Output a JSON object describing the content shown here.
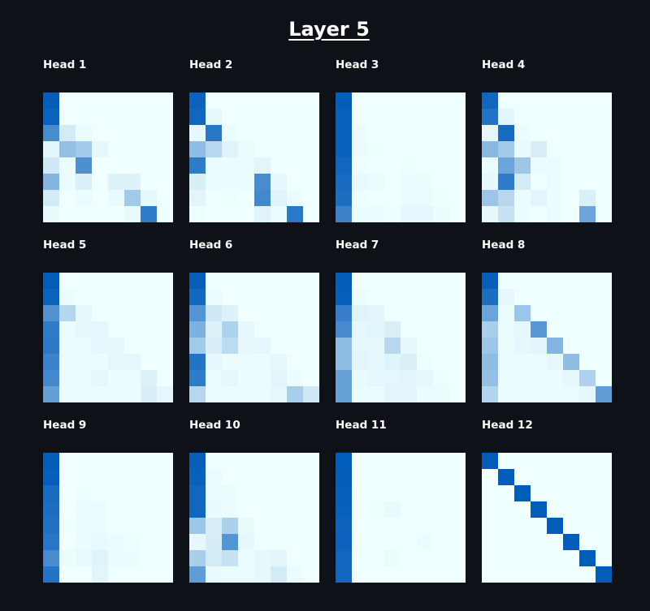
{
  "chart_data": {
    "type": "heatmap",
    "title": "Layer 5",
    "colorscale": [
      "#f0ffff",
      "#005ab9"
    ],
    "value_range": [
      0,
      1
    ],
    "heads": [
      {
        "title": "Head 1",
        "matrix": [
          [
            0.98,
            0,
            0,
            0,
            0,
            0,
            0,
            0
          ],
          [
            0.95,
            0,
            0,
            0,
            0,
            0,
            0,
            0
          ],
          [
            0.7,
            0.12,
            0.02,
            0,
            0,
            0,
            0,
            0
          ],
          [
            0.06,
            0.38,
            0.32,
            0.04,
            0,
            0,
            0,
            0
          ],
          [
            0.14,
            0.02,
            0.68,
            0,
            0,
            0,
            0,
            0
          ],
          [
            0.45,
            0.02,
            0.09,
            0,
            0.08,
            0.08,
            0,
            0
          ],
          [
            0.12,
            0,
            0.02,
            0,
            0.03,
            0.33,
            0.04,
            0
          ],
          [
            0.03,
            0,
            0,
            0,
            0,
            0.03,
            0.8,
            0
          ]
        ]
      },
      {
        "title": "Head 2",
        "matrix": [
          [
            0.95,
            0,
            0,
            0,
            0,
            0,
            0,
            0
          ],
          [
            0.93,
            0.04,
            0,
            0,
            0,
            0,
            0,
            0
          ],
          [
            0.04,
            0.83,
            0.02,
            0,
            0,
            0,
            0,
            0
          ],
          [
            0.4,
            0.24,
            0.07,
            0.02,
            0,
            0,
            0,
            0
          ],
          [
            0.8,
            0.02,
            0.02,
            0.02,
            0.06,
            0,
            0,
            0
          ],
          [
            0.1,
            0.02,
            0.02,
            0.02,
            0.7,
            0.04,
            0,
            0
          ],
          [
            0.06,
            0,
            0.01,
            0,
            0.72,
            0.07,
            0.02,
            0
          ],
          [
            0.01,
            0,
            0,
            0,
            0.07,
            0.02,
            0.82,
            0
          ]
        ]
      },
      {
        "title": "Head 3",
        "matrix": [
          [
            0.98,
            0,
            0,
            0,
            0,
            0,
            0,
            0
          ],
          [
            0.96,
            0,
            0,
            0,
            0,
            0,
            0,
            0
          ],
          [
            0.96,
            0.02,
            0,
            0,
            0,
            0,
            0,
            0
          ],
          [
            0.96,
            0.02,
            0.01,
            0,
            0,
            0,
            0,
            0
          ],
          [
            0.93,
            0.01,
            0,
            0,
            0.01,
            0,
            0,
            0
          ],
          [
            0.9,
            0.03,
            0.02,
            0,
            0.02,
            0.02,
            0,
            0
          ],
          [
            0.88,
            0.01,
            0,
            0,
            0.02,
            0.02,
            0.01,
            0
          ],
          [
            0.75,
            0.02,
            0.02,
            0.01,
            0.05,
            0.05,
            0.02,
            0
          ]
        ]
      },
      {
        "title": "Head 4",
        "matrix": [
          [
            0.93,
            0,
            0,
            0,
            0,
            0,
            0,
            0
          ],
          [
            0.85,
            0.06,
            0,
            0,
            0,
            0,
            0,
            0
          ],
          [
            0.05,
            0.9,
            0.02,
            0,
            0,
            0,
            0,
            0
          ],
          [
            0.43,
            0.32,
            0.03,
            0.1,
            0,
            0,
            0,
            0
          ],
          [
            0.02,
            0.55,
            0.34,
            0.02,
            0.02,
            0,
            0,
            0
          ],
          [
            0.04,
            0.8,
            0.12,
            0,
            0.02,
            0,
            0,
            0
          ],
          [
            0.35,
            0.24,
            0.02,
            0.06,
            0.02,
            0,
            0.09,
            0
          ],
          [
            0.04,
            0.17,
            0.02,
            0,
            0.02,
            0,
            0.55,
            0
          ]
        ]
      },
      {
        "title": "Head 5",
        "matrix": [
          [
            0.98,
            0,
            0,
            0,
            0,
            0,
            0,
            0
          ],
          [
            0.95,
            0.02,
            0,
            0,
            0,
            0,
            0,
            0
          ],
          [
            0.66,
            0.25,
            0.04,
            0,
            0,
            0,
            0,
            0
          ],
          [
            0.8,
            0.02,
            0.04,
            0.05,
            0,
            0,
            0,
            0
          ],
          [
            0.82,
            0.02,
            0.02,
            0.05,
            0.04,
            0,
            0,
            0
          ],
          [
            0.75,
            0.02,
            0.02,
            0.02,
            0.05,
            0.05,
            0,
            0
          ],
          [
            0.72,
            0.02,
            0.02,
            0.05,
            0.02,
            0.02,
            0.08,
            0
          ],
          [
            0.58,
            0.02,
            0.02,
            0.02,
            0.02,
            0.02,
            0.1,
            0.05
          ]
        ]
      },
      {
        "title": "Head 6",
        "matrix": [
          [
            0.97,
            0,
            0,
            0,
            0,
            0,
            0,
            0
          ],
          [
            0.92,
            0.02,
            0,
            0,
            0,
            0,
            0,
            0
          ],
          [
            0.65,
            0.14,
            0.08,
            0,
            0,
            0,
            0,
            0
          ],
          [
            0.47,
            0.08,
            0.27,
            0.04,
            0,
            0,
            0,
            0
          ],
          [
            0.33,
            0.1,
            0.22,
            0.04,
            0.05,
            0,
            0,
            0
          ],
          [
            0.85,
            0.04,
            0.02,
            0.02,
            0.02,
            0.04,
            0,
            0
          ],
          [
            0.8,
            0.02,
            0.05,
            0.02,
            0.02,
            0.06,
            0.02,
            0
          ],
          [
            0.24,
            0.02,
            0.02,
            0.02,
            0.02,
            0.04,
            0.3,
            0.14
          ]
        ]
      },
      {
        "title": "Head 7",
        "matrix": [
          [
            0.98,
            0,
            0,
            0,
            0,
            0,
            0,
            0
          ],
          [
            0.97,
            0.02,
            0,
            0,
            0,
            0,
            0,
            0
          ],
          [
            0.77,
            0.07,
            0.06,
            0,
            0,
            0,
            0,
            0
          ],
          [
            0.71,
            0.05,
            0.06,
            0.09,
            0,
            0,
            0,
            0
          ],
          [
            0.4,
            0.05,
            0.04,
            0.24,
            0.04,
            0,
            0,
            0
          ],
          [
            0.4,
            0.06,
            0.05,
            0.07,
            0.09,
            0.01,
            0,
            0
          ],
          [
            0.57,
            0.03,
            0.05,
            0.05,
            0.06,
            0.04,
            0.01,
            0
          ],
          [
            0.57,
            0.02,
            0.02,
            0.06,
            0.06,
            0.02,
            0.02,
            0
          ]
        ]
      },
      {
        "title": "Head 8",
        "matrix": [
          [
            0.97,
            0,
            0,
            0,
            0,
            0,
            0,
            0
          ],
          [
            0.88,
            0.04,
            0,
            0,
            0,
            0,
            0,
            0
          ],
          [
            0.55,
            0.02,
            0.35,
            0,
            0,
            0,
            0,
            0
          ],
          [
            0.3,
            0.02,
            0.05,
            0.63,
            0,
            0,
            0,
            0
          ],
          [
            0.35,
            0.02,
            0.04,
            0.06,
            0.45,
            0,
            0,
            0
          ],
          [
            0.4,
            0.02,
            0.02,
            0.02,
            0.04,
            0.4,
            0,
            0
          ],
          [
            0.38,
            0.02,
            0.02,
            0.02,
            0.02,
            0.04,
            0.27,
            0
          ],
          [
            0.26,
            0.02,
            0.02,
            0.02,
            0.02,
            0.02,
            0.05,
            0.6
          ]
        ]
      },
      {
        "title": "Head 9",
        "matrix": [
          [
            0.98,
            0,
            0,
            0,
            0,
            0,
            0,
            0
          ],
          [
            0.97,
            0,
            0,
            0,
            0,
            0,
            0,
            0
          ],
          [
            0.9,
            0,
            0.01,
            0,
            0,
            0,
            0,
            0
          ],
          [
            0.88,
            0,
            0.02,
            0.02,
            0,
            0,
            0,
            0
          ],
          [
            0.86,
            0.01,
            0.02,
            0.02,
            0,
            0,
            0,
            0
          ],
          [
            0.83,
            0,
            0.02,
            0.03,
            0.02,
            0.01,
            0,
            0
          ],
          [
            0.7,
            0.02,
            0.03,
            0.07,
            0.02,
            0.02,
            0,
            0
          ],
          [
            0.85,
            0,
            0,
            0.06,
            0,
            0,
            0,
            0
          ]
        ]
      },
      {
        "title": "Head 10",
        "matrix": [
          [
            0.97,
            0,
            0,
            0,
            0,
            0,
            0,
            0
          ],
          [
            0.96,
            0.02,
            0,
            0,
            0,
            0,
            0,
            0
          ],
          [
            0.93,
            0.02,
            0.02,
            0,
            0,
            0,
            0,
            0
          ],
          [
            0.93,
            0.03,
            0.02,
            0,
            0,
            0,
            0,
            0
          ],
          [
            0.35,
            0.1,
            0.28,
            0.03,
            0,
            0,
            0,
            0
          ],
          [
            0.04,
            0.11,
            0.65,
            0.04,
            0,
            0,
            0,
            0
          ],
          [
            0.3,
            0.12,
            0.18,
            0.02,
            0.04,
            0.06,
            0,
            0
          ],
          [
            0.6,
            0.03,
            0.02,
            0.02,
            0.04,
            0.12,
            0.02,
            0
          ]
        ]
      },
      {
        "title": "Head 11",
        "matrix": [
          [
            0.99,
            0,
            0,
            0,
            0,
            0,
            0,
            0
          ],
          [
            0.98,
            0,
            0,
            0,
            0,
            0,
            0,
            0
          ],
          [
            0.97,
            0,
            0,
            0,
            0,
            0,
            0,
            0
          ],
          [
            0.96,
            0,
            0.01,
            0.03,
            0,
            0,
            0,
            0
          ],
          [
            0.94,
            0,
            0,
            0,
            0,
            0,
            0,
            0
          ],
          [
            0.95,
            0,
            0,
            0,
            0,
            0.02,
            0,
            0
          ],
          [
            0.92,
            0,
            0,
            0.02,
            0,
            0,
            0,
            0
          ],
          [
            0.93,
            0,
            0,
            0,
            0,
            0,
            0,
            0
          ]
        ]
      },
      {
        "title": "Head 12",
        "matrix": [
          [
            0.99,
            0,
            0,
            0,
            0,
            0,
            0,
            0
          ],
          [
            0,
            0.99,
            0,
            0,
            0,
            0,
            0,
            0
          ],
          [
            0,
            0,
            0.99,
            0,
            0,
            0,
            0,
            0
          ],
          [
            0,
            0,
            0,
            0.99,
            0,
            0,
            0,
            0
          ],
          [
            0,
            0,
            0,
            0,
            0.99,
            0,
            0,
            0
          ],
          [
            0,
            0,
            0,
            0,
            0,
            0.99,
            0,
            0
          ],
          [
            0,
            0,
            0,
            0,
            0,
            0,
            0.99,
            0
          ],
          [
            0,
            0,
            0,
            0,
            0,
            0,
            0,
            0.99
          ]
        ]
      }
    ]
  }
}
